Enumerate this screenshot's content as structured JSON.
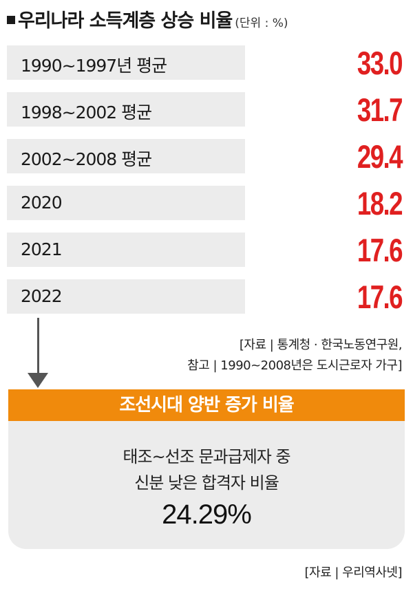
{
  "title": "우리나라 소득계층 상승 비율",
  "unit": "(단위 : %)",
  "chart_data": {
    "type": "table",
    "title": "우리나라 소득계층 상승 비율",
    "unit": "%",
    "categories": [
      "1990~1997년 평균",
      "1998~2002 평균",
      "2002~2008 평균",
      "2020",
      "2021",
      "2022"
    ],
    "values": [
      33.0,
      31.7,
      29.4,
      18.2,
      17.6,
      17.6
    ],
    "value_labels": [
      "33.0",
      "31.7",
      "29.4",
      "18.2",
      "17.6",
      "17.6"
    ]
  },
  "source_note": {
    "line1": "[자료 | 통계청 · 한국노동연구원,",
    "line2": "참고 | 1990~2008년은 도시근로자 가구]"
  },
  "callout": {
    "header": "조선시대 양반 증가 비율",
    "line1": "태조~선조 문과급제자 중",
    "line2": "신분 낮은 합격자 비율",
    "value": "24.29%"
  },
  "source_bottom": "[자료 | 우리역사넷]",
  "colors": {
    "value_red": "#e02020",
    "row_bg": "#ececec",
    "accent_orange": "#f08a0c"
  }
}
